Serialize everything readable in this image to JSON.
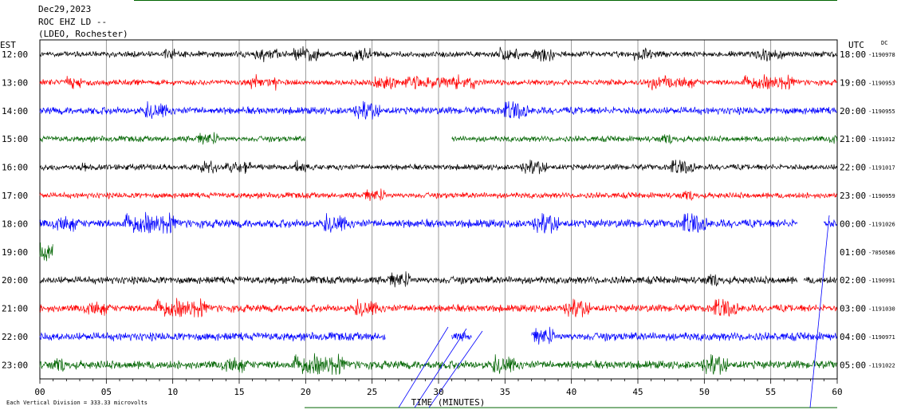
{
  "header": {
    "date": "Dec29,2023",
    "station": "ROC EHZ LD --",
    "network": "(LDEO, Rochester)"
  },
  "left_axis_title": "EST",
  "right_axis_title": "UTC",
  "dc_label": "DC",
  "footer": {
    "scale_note": "Each Vertical Division =  333.33 microvolts",
    "xlabel": "TIME (MINUTES)"
  },
  "colors": {
    "black": "#000000",
    "red": "#ff0000",
    "blue": "#0000ff",
    "green": "#006400",
    "grid": "#808080"
  },
  "chart_data": {
    "type": "line",
    "title": "ROC EHZ LD --",
    "xlabel": "TIME (MINUTES)",
    "ylabel": "EST",
    "xlim": [
      0,
      60
    ],
    "x_ticks": [
      "00",
      "05",
      "10",
      "15",
      "20",
      "25",
      "30",
      "35",
      "40",
      "45",
      "50",
      "55",
      "60"
    ],
    "grid": true,
    "rows": [
      {
        "est": "12:00",
        "utc": "18:00",
        "dc": "-1190978",
        "color": "black",
        "segments": [
          [
            0,
            60
          ]
        ],
        "amp": 0.35
      },
      {
        "est": "13:00",
        "utc": "19:00",
        "dc": "-1190953",
        "color": "red",
        "segments": [
          [
            0,
            60
          ]
        ],
        "amp": 0.35
      },
      {
        "est": "14:00",
        "utc": "20:00",
        "dc": "-1190955",
        "color": "blue",
        "segments": [
          [
            0,
            60
          ]
        ],
        "amp": 0.45
      },
      {
        "est": "15:00",
        "utc": "21:00",
        "dc": "-1191012",
        "color": "green",
        "segments": [
          [
            0,
            20
          ],
          [
            31,
            60
          ]
        ],
        "amp": 0.35
      },
      {
        "est": "16:00",
        "utc": "22:00",
        "dc": "-1191017",
        "color": "black",
        "segments": [
          [
            0,
            60
          ]
        ],
        "amp": 0.35
      },
      {
        "est": "17:00",
        "utc": "23:00",
        "dc": "-1190959",
        "color": "red",
        "segments": [
          [
            0,
            60
          ]
        ],
        "amp": 0.35
      },
      {
        "est": "18:00",
        "utc": "00:00",
        "dc": "-1191026",
        "color": "blue",
        "segments": [
          [
            0,
            57
          ],
          [
            59,
            60
          ]
        ],
        "amp": 0.5
      },
      {
        "est": "19:00",
        "utc": "01:00",
        "dc": "-7050586",
        "color": "green",
        "segments": [
          [
            0,
            1
          ]
        ],
        "amp": 1.2
      },
      {
        "est": "20:00",
        "utc": "02:00",
        "dc": "-1190991",
        "color": "black",
        "segments": [
          [
            0,
            57
          ],
          [
            57.5,
            60
          ]
        ],
        "amp": 0.45
      },
      {
        "est": "21:00",
        "utc": "03:00",
        "dc": "-1191030",
        "color": "red",
        "segments": [
          [
            0,
            60
          ]
        ],
        "amp": 0.45
      },
      {
        "est": "22:00",
        "utc": "04:00",
        "dc": "-1190971",
        "color": "blue",
        "segments": [
          [
            0,
            26
          ],
          [
            31,
            32.5
          ],
          [
            37,
            60
          ]
        ],
        "amp": 0.5
      },
      {
        "est": "23:00",
        "utc": "05:00",
        "dc": "-1191022",
        "color": "green",
        "segments": [
          [
            0,
            60
          ]
        ],
        "amp": 0.5
      }
    ]
  }
}
